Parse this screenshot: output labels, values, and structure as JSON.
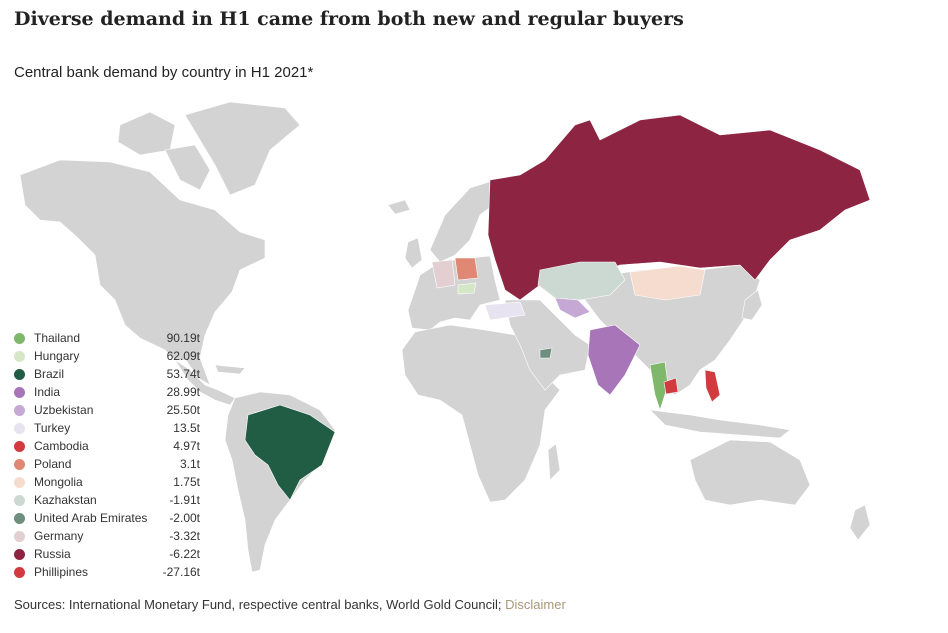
{
  "headline": "Diverse demand in H1 came from both new and regular buyers",
  "subtitle": "Central bank demand by country in H1 2021*",
  "legend": [
    {
      "name": "Thailand",
      "value": "90.19t",
      "color": "#7fb86a"
    },
    {
      "name": "Hungary",
      "value": "62.09t",
      "color": "#d6e7c8"
    },
    {
      "name": "Brazil",
      "value": "53.74t",
      "color": "#215c45"
    },
    {
      "name": "India",
      "value": "28.99t",
      "color": "#a875b8"
    },
    {
      "name": "Uzbekistan",
      "value": "25.50t",
      "color": "#c5a8d3"
    },
    {
      "name": "Turkey",
      "value": "13.5t",
      "color": "#e8e3f0"
    },
    {
      "name": "Cambodia",
      "value": "4.97t",
      "color": "#d13b40"
    },
    {
      "name": "Poland",
      "value": "3.1t",
      "color": "#e08873"
    },
    {
      "name": "Mongolia",
      "value": "1.75t",
      "color": "#f5dccf"
    },
    {
      "name": "Kazhakstan",
      "value": "-1.91t",
      "color": "#ccd9d2"
    },
    {
      "name": "United Arab Emirates",
      "value": "-2.00t",
      "color": "#6e8f7d"
    },
    {
      "name": "Germany",
      "value": "-3.32t",
      "color": "#e3cfd1"
    },
    {
      "name": "Russia",
      "value": "-6.22t",
      "color": "#8c2442"
    },
    {
      "name": "Phillipines",
      "value": "-27.16t",
      "color": "#d13b40"
    }
  ],
  "sources": {
    "text": "Sources: International Monetary Fund, respective central banks, World Gold Council;",
    "link": "Disclaimer"
  },
  "map": {
    "base_color": "#d3d3d3",
    "border_color": "#ffffff"
  }
}
